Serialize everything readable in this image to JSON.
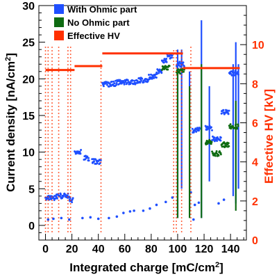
{
  "chart_data": {
    "type": "scatter",
    "title": "",
    "xlabel": "Integrated charge [mC/cm",
    "xlabel_sup": "2",
    "xlabel_end": "]",
    "ylabel": "Current density [nA/cm",
    "ylabel_sup": "2",
    "ylabel_end": "]",
    "y2label": "Effective HV [kV]",
    "xlim": [
      -5,
      152
    ],
    "ylim": [
      -2,
      30
    ],
    "y2lim": [
      0,
      12
    ],
    "x_ticks": [
      "0",
      "20",
      "40",
      "60",
      "80",
      "100",
      "120",
      "140"
    ],
    "y_ticks": [
      "0",
      "5",
      "10",
      "15",
      "20",
      "25",
      "30"
    ],
    "y2_ticks": [
      "0",
      "2",
      "4",
      "6",
      "8",
      "10"
    ],
    "grid": false,
    "legend_position": "top-left",
    "legend": [
      {
        "label": "With Ohmic part",
        "color": "#1f4fff"
      },
      {
        "label": "No Ohmic part",
        "color": "#0e6b12"
      },
      {
        "label": "Effective HV",
        "color": "#ff3000"
      }
    ],
    "series": [
      {
        "name": "With Ohmic part",
        "color": "#1f4fff",
        "segments": [
          {
            "x0": 0,
            "x1": 8,
            "y": 3.8
          },
          {
            "x0": 8,
            "x1": 18,
            "y": 4.0
          },
          {
            "x0": 18,
            "x1": 21,
            "y": 3.5
          },
          {
            "x0": 22,
            "x1": 27,
            "y": 10.0
          },
          {
            "x0": 29,
            "x1": 33,
            "y": 9.2
          },
          {
            "x0": 35,
            "x1": 42,
            "y": 8.7
          },
          {
            "x0": 43,
            "x1": 53,
            "y": 19.3
          },
          {
            "x0": 53,
            "x1": 60,
            "y": 19.5
          },
          {
            "x0": 60,
            "x1": 70,
            "y": 19.6
          },
          {
            "x0": 70,
            "x1": 78,
            "y": 19.8
          },
          {
            "x0": 78,
            "x1": 84,
            "y": 20.3
          },
          {
            "x0": 84,
            "x1": 88,
            "y": 21.0
          },
          {
            "x0": 88,
            "x1": 92,
            "y": 22.5
          },
          {
            "x0": 92,
            "x1": 96,
            "y": 23.0
          },
          {
            "x0": 99,
            "x1": 105,
            "y": 22.0
          },
          {
            "x0": 111,
            "x1": 117,
            "y": 13.0
          },
          {
            "x0": 121,
            "x1": 126,
            "y": 13.3
          },
          {
            "x0": 126,
            "x1": 133,
            "y": 11.8
          },
          {
            "x0": 133,
            "x1": 139,
            "y": 15.5
          },
          {
            "x0": 139,
            "x1": 146,
            "y": 20.8
          }
        ],
        "spikes": [
          {
            "x": 100,
            "y0": 1,
            "y1": 24
          },
          {
            "x": 103,
            "y0": 5,
            "y1": 24
          },
          {
            "x": 109,
            "y0": 2,
            "y1": 21
          },
          {
            "x": 118,
            "y0": 1,
            "y1": 28
          },
          {
            "x": 124,
            "y0": 6,
            "y1": 19
          },
          {
            "x": 142,
            "y0": 4,
            "y1": 22
          },
          {
            "x": 144,
            "y0": 3,
            "y1": 25
          },
          {
            "x": 146,
            "y0": 5,
            "y1": 22
          }
        ],
        "lows": [
          {
            "x": 2,
            "y": 0.8
          },
          {
            "x": 6,
            "y": 0.9
          },
          {
            "x": 12,
            "y": 1.0
          },
          {
            "x": 18,
            "y": 0.8
          },
          {
            "x": 28,
            "y": 1.0
          },
          {
            "x": 34,
            "y": 1.1
          },
          {
            "x": 40,
            "y": 0.9
          },
          {
            "x": 48,
            "y": 1.0
          },
          {
            "x": 54,
            "y": 1.2
          },
          {
            "x": 59,
            "y": 1.7
          },
          {
            "x": 64,
            "y": 1.9
          },
          {
            "x": 67,
            "y": 2.0
          },
          {
            "x": 74,
            "y": 2.0
          },
          {
            "x": 79,
            "y": 2.3
          },
          {
            "x": 84,
            "y": 2.8
          },
          {
            "x": 91,
            "y": 3.2
          },
          {
            "x": 96,
            "y": 3.8
          },
          {
            "x": 110,
            "y": 4.5
          },
          {
            "x": 112,
            "y": 0.8
          },
          {
            "x": 113,
            "y": 2.8
          },
          {
            "x": 116,
            "y": 3.1
          },
          {
            "x": 131,
            "y": 3.0
          },
          {
            "x": 135,
            "y": 3.5
          }
        ]
      },
      {
        "name": "No Ohmic part",
        "color": "#0e6b12",
        "segments": [
          {
            "x0": 88,
            "x1": 94,
            "y": 21.5
          },
          {
            "x0": 99,
            "x1": 105,
            "y": 21.0
          },
          {
            "x0": 121,
            "x1": 126,
            "y": 11.3
          },
          {
            "x0": 126,
            "x1": 133,
            "y": 9.8
          },
          {
            "x0": 133,
            "x1": 139,
            "y": 11.0
          },
          {
            "x0": 139,
            "x1": 146,
            "y": 13.5
          }
        ],
        "spikes": [
          {
            "x": 100,
            "y0": 1,
            "y1": 21
          },
          {
            "x": 109,
            "y0": 1,
            "y1": 19
          },
          {
            "x": 118,
            "y0": 1,
            "y1": 22
          },
          {
            "x": 144,
            "y0": 2,
            "y1": 17
          }
        ]
      },
      {
        "name": "Effective HV",
        "axis": "right",
        "color": "#ff3000",
        "segments": [
          {
            "x0": 0,
            "x1": 22,
            "y": 8.7
          },
          {
            "x0": 22,
            "x1": 43,
            "y": 8.9
          },
          {
            "x0": 43,
            "x1": 104,
            "y": 9.55
          },
          {
            "x0": 104,
            "x1": 147,
            "y": 8.8
          }
        ],
        "ramps": [
          {
            "x": 0,
            "y0": 0.4,
            "y1": 10
          },
          {
            "x": 2,
            "y0": 0.4,
            "y1": 10
          },
          {
            "x": 5,
            "y0": 0.4,
            "y1": 10
          },
          {
            "x": 10,
            "y0": 0.4,
            "y1": 10
          },
          {
            "x": 17,
            "y0": 0.4,
            "y1": 10
          },
          {
            "x": 19,
            "y0": 0.4,
            "y1": 10
          },
          {
            "x": 42,
            "y0": 0.4,
            "y1": 9.2
          },
          {
            "x": 97,
            "y0": 0.4,
            "y1": 9.8
          },
          {
            "x": 99,
            "y0": 0.4,
            "y1": 9.8
          },
          {
            "x": 103,
            "y0": 0.4,
            "y1": 9.8
          },
          {
            "x": 110,
            "y0": 0.4,
            "y1": 10
          }
        ]
      }
    ]
  }
}
